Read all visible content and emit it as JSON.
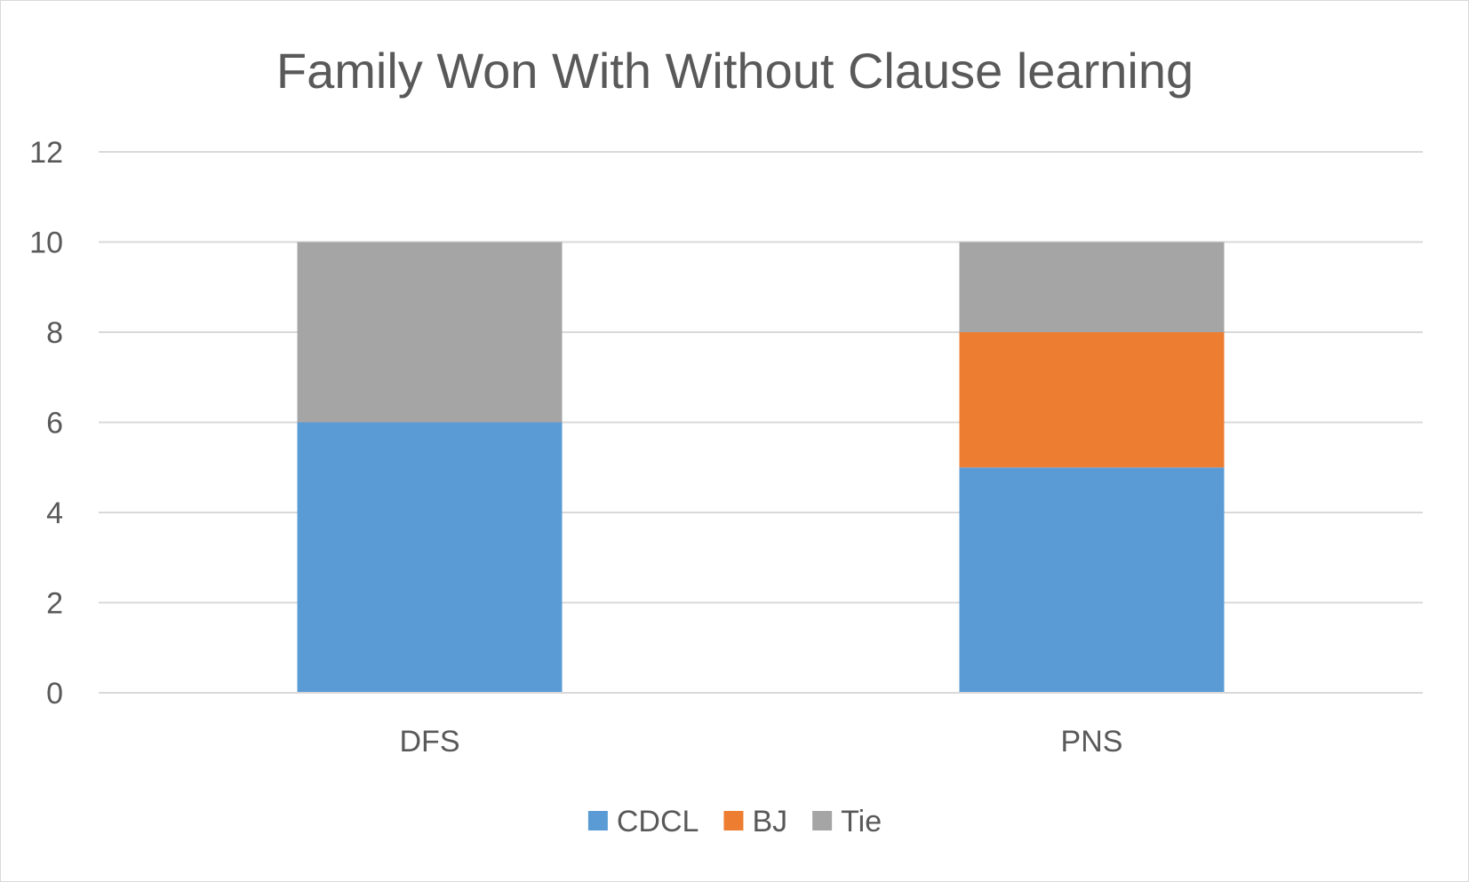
{
  "chart_data": {
    "type": "bar",
    "stacked": true,
    "title": "Family Won With Without Clause learning",
    "xlabel": "",
    "ylabel": "",
    "categories": [
      "DFS",
      "PNS"
    ],
    "series": [
      {
        "name": "CDCL",
        "values": [
          6,
          5
        ],
        "color": "#5b9bd5"
      },
      {
        "name": "BJ",
        "values": [
          0,
          3
        ],
        "color": "#ed7d31"
      },
      {
        "name": "Tie",
        "values": [
          4,
          2
        ],
        "color": "#a5a5a5"
      }
    ],
    "ylim": [
      0,
      12
    ],
    "yticks": [
      0,
      2,
      4,
      6,
      8,
      10,
      12
    ],
    "grid": true,
    "legend_position": "bottom",
    "colors": {
      "gridline": "#d9d9d9",
      "text": "#595959"
    }
  }
}
